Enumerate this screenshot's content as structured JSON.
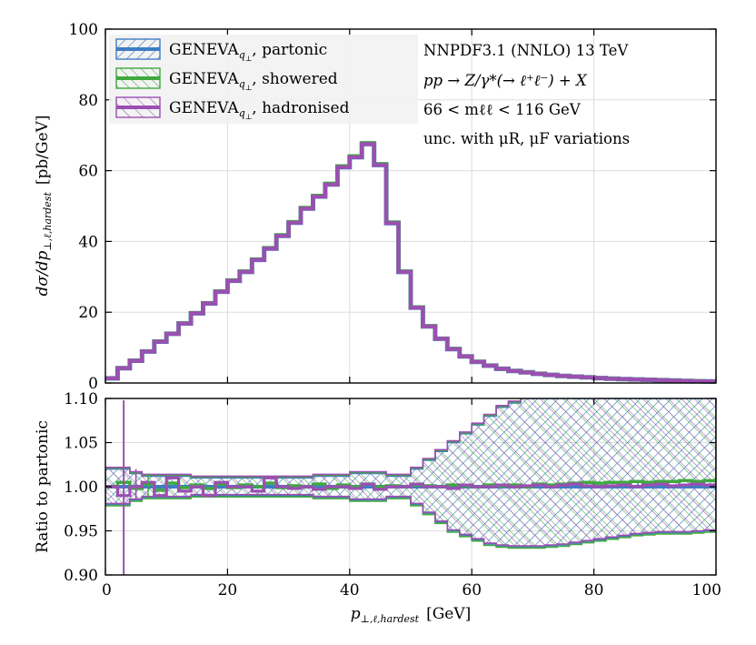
{
  "chart_data": {
    "type": "line",
    "style": "step-histogram with ratio panel",
    "x_range": [
      0,
      100
    ],
    "x_ticks": [
      "0",
      "20",
      "40",
      "60",
      "80",
      "100"
    ],
    "xlabel": {
      "symbol": "p",
      "sub": "⊥,ℓ,hardest",
      "unit": "[GeV]"
    },
    "main": {
      "ylabel": {
        "text": "dσ/dp",
        "sub": "⊥,ℓ,hardest",
        "unit": "[pb/GeV]"
      },
      "y_range": [
        0,
        100
      ],
      "y_ticks": [
        "0",
        "20",
        "40",
        "60",
        "80",
        "100"
      ],
      "bin_edges": [
        0,
        2,
        4,
        6,
        8,
        10,
        12,
        14,
        16,
        18,
        20,
        22,
        24,
        26,
        28,
        30,
        32,
        34,
        36,
        38,
        40,
        42,
        44,
        46,
        48,
        50,
        52,
        54,
        56,
        58,
        60,
        62,
        64,
        66,
        68,
        70,
        72,
        74,
        76,
        78,
        80,
        82,
        84,
        86,
        88,
        90,
        92,
        94,
        96,
        98,
        100
      ],
      "values": [
        1.3,
        4.2,
        6.3,
        8.9,
        11.7,
        13.9,
        16.8,
        19.7,
        22.5,
        25.8,
        28.9,
        31.4,
        34.8,
        38.0,
        41.6,
        45.3,
        49.3,
        52.7,
        56.1,
        61.0,
        63.8,
        67.5,
        61.6,
        45.2,
        31.4,
        21.3,
        16.0,
        12.5,
        9.6,
        7.5,
        6.0,
        4.9,
        4.0,
        3.4,
        3.0,
        2.6,
        2.3,
        2.0,
        1.8,
        1.6,
        1.4,
        1.2,
        1.1,
        1.0,
        0.9,
        0.8,
        0.7,
        0.6,
        0.5,
        0.45
      ]
    },
    "ratio": {
      "ylabel": "Ratio to partonic",
      "y_range": [
        0.9,
        1.1
      ],
      "y_ticks": [
        "0.90",
        "0.95",
        "1.00",
        "1.05",
        "1.10"
      ],
      "band_upper": [
        1.02,
        1.02,
        1.015,
        1.012,
        1.012,
        1.012,
        1.012,
        1.01,
        1.01,
        1.01,
        1.01,
        1.01,
        1.01,
        1.01,
        1.01,
        1.01,
        1.01,
        1.012,
        1.012,
        1.012,
        1.015,
        1.015,
        1.015,
        1.012,
        1.012,
        1.02,
        1.03,
        1.04,
        1.05,
        1.06,
        1.07,
        1.08,
        1.09,
        1.095,
        1.1,
        1.1,
        1.1,
        1.1,
        1.1,
        1.1,
        1.1,
        1.1,
        1.1,
        1.1,
        1.1,
        1.1,
        1.1,
        1.1,
        1.1,
        1.1
      ],
      "band_lower": [
        0.98,
        0.98,
        0.985,
        0.988,
        0.988,
        0.988,
        0.988,
        0.99,
        0.99,
        0.99,
        0.99,
        0.99,
        0.99,
        0.99,
        0.99,
        0.99,
        0.99,
        0.988,
        0.988,
        0.988,
        0.985,
        0.985,
        0.985,
        0.988,
        0.988,
        0.98,
        0.97,
        0.96,
        0.95,
        0.945,
        0.94,
        0.935,
        0.933,
        0.932,
        0.932,
        0.932,
        0.933,
        0.934,
        0.936,
        0.938,
        0.94,
        0.942,
        0.944,
        0.946,
        0.947,
        0.948,
        0.948,
        0.948,
        0.949,
        0.95
      ],
      "showered_ratio": [
        1.0,
        1.005,
        0.998,
        1.003,
        0.996,
        1.004,
        0.999,
        1.002,
        0.998,
        1.003,
        0.999,
        1.002,
        1.0,
        1.004,
        0.999,
        1.001,
        1.0,
        1.003,
        0.998,
        1.002,
        1.0,
        1.003,
        1.0,
        1.001,
        1.0,
        1.002,
        1.001,
        1.0,
        1.002,
        1.001,
        1.0,
        1.002,
        1.001,
        1.002,
        1.0,
        1.003,
        1.002,
        1.003,
        1.004,
        1.005,
        1.004,
        1.005,
        1.005,
        1.006,
        1.005,
        1.006,
        1.006,
        1.007,
        1.006,
        1.007
      ],
      "hadronised_ratio": [
        1.0,
        0.99,
        1.0,
        1.005,
        0.99,
        1.01,
        0.995,
        1.0,
        0.99,
        1.005,
        1.0,
        1.0,
        0.995,
        1.01,
        1.0,
        0.998,
        1.0,
        0.997,
        1.0,
        1.0,
        0.998,
        1.003,
        0.997,
        1.0,
        1.0,
        1.003,
        1.0,
        1.0,
        0.998,
        1.002,
        1.0,
        1.0,
        1.002,
        1.0,
        1.001,
        1.002,
        1.0,
        1.002,
        1.003,
        1.001,
        1.0,
        1.001,
        1.002,
        1.0,
        1.002,
        1.003,
        1.001,
        1.002,
        1.003,
        1.002
      ]
    },
    "series": [
      {
        "name": "partonic",
        "color": "#3d7dc4"
      },
      {
        "name": "showered",
        "color": "#3fa83f"
      },
      {
        "name": "hadronised",
        "color": "#9b4fb1"
      }
    ],
    "legend": {
      "placement": "top-left",
      "prefix": "GENEVA",
      "sub": "q",
      "subsub": "⊥",
      "entries": [
        ", partonic",
        ", showered",
        ", hadronised"
      ]
    },
    "annotations": [
      "NNPDF3.1 (NNLO) 13 TeV",
      "pp → Z/γ*(→ ℓ⁺ℓ⁻) + X",
      "66 < mℓℓ < 116 GeV",
      "unc. with μR, μF variations"
    ]
  }
}
